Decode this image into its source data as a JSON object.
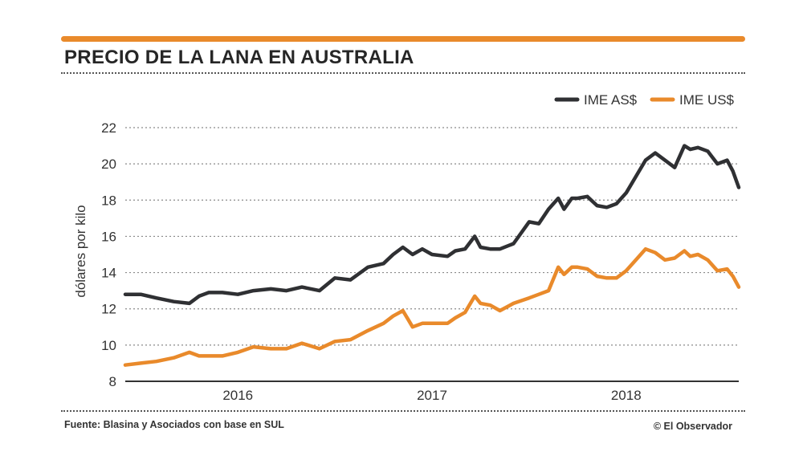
{
  "header": {
    "title": "PRECIO DE LA LANA EN AUSTRALIA"
  },
  "footer": {
    "source": "Fuente: Blasina y Asociados con base en SUL",
    "credit": "© El Observador"
  },
  "colors": {
    "accent": "#e98a2b",
    "series_as": "#2f3033",
    "series_us": "#e98a2b",
    "grid": "#8a8a8a"
  },
  "chart_data": {
    "type": "line",
    "title": "PRECIO DE LA LANA EN AUSTRALIA",
    "xlabel": "",
    "ylabel": "dólares por kilo",
    "xlim": [
      2015.42,
      2018.58
    ],
    "ylim": [
      8,
      22
    ],
    "y_ticks": [
      8,
      10,
      12,
      14,
      16,
      18,
      20,
      22
    ],
    "x_tick_labels": [
      {
        "label": "2016",
        "x": 2016.0
      },
      {
        "label": "2017",
        "x": 2017.0
      },
      {
        "label": "2018",
        "x": 2018.0
      }
    ],
    "legend": "top-right",
    "grid": true,
    "series": [
      {
        "name": "IME AS$",
        "x": [
          2015.42,
          2015.5,
          2015.58,
          2015.67,
          2015.75,
          2015.8,
          2015.85,
          2015.92,
          2016.0,
          2016.08,
          2016.17,
          2016.25,
          2016.33,
          2016.42,
          2016.5,
          2016.58,
          2016.67,
          2016.75,
          2016.8,
          2016.85,
          2016.9,
          2016.95,
          2017.0,
          2017.08,
          2017.12,
          2017.17,
          2017.22,
          2017.25,
          2017.3,
          2017.35,
          2017.42,
          2017.5,
          2017.55,
          2017.6,
          2017.65,
          2017.68,
          2017.72,
          2017.75,
          2017.8,
          2017.85,
          2017.9,
          2017.95,
          2018.0,
          2018.05,
          2018.1,
          2018.15,
          2018.2,
          2018.25,
          2018.3,
          2018.33,
          2018.37,
          2018.42,
          2018.47,
          2018.52,
          2018.55,
          2018.58
        ],
        "values": [
          12.8,
          12.8,
          12.6,
          12.4,
          12.3,
          12.7,
          12.9,
          12.9,
          12.8,
          13.0,
          13.1,
          13.0,
          13.2,
          13.0,
          13.7,
          13.6,
          14.3,
          14.5,
          15.0,
          15.4,
          15.0,
          15.3,
          15.0,
          14.9,
          15.2,
          15.3,
          16.0,
          15.4,
          15.3,
          15.3,
          15.6,
          16.8,
          16.7,
          17.5,
          18.1,
          17.5,
          18.1,
          18.1,
          18.2,
          17.7,
          17.6,
          17.8,
          18.4,
          19.3,
          20.2,
          20.6,
          20.2,
          19.8,
          21.0,
          20.8,
          20.9,
          20.7,
          20.0,
          20.2,
          19.6,
          18.7
        ]
      },
      {
        "name": "IME US$",
        "x": [
          2015.42,
          2015.5,
          2015.58,
          2015.67,
          2015.75,
          2015.8,
          2015.85,
          2015.92,
          2016.0,
          2016.08,
          2016.17,
          2016.25,
          2016.33,
          2016.42,
          2016.5,
          2016.58,
          2016.67,
          2016.75,
          2016.8,
          2016.85,
          2016.9,
          2016.95,
          2017.0,
          2017.08,
          2017.12,
          2017.17,
          2017.22,
          2017.25,
          2017.3,
          2017.35,
          2017.42,
          2017.5,
          2017.55,
          2017.6,
          2017.65,
          2017.68,
          2017.72,
          2017.75,
          2017.8,
          2017.85,
          2017.9,
          2017.95,
          2018.0,
          2018.05,
          2018.1,
          2018.15,
          2018.2,
          2018.25,
          2018.3,
          2018.33,
          2018.37,
          2018.42,
          2018.47,
          2018.52,
          2018.55,
          2018.58
        ],
        "values": [
          8.9,
          9.0,
          9.1,
          9.3,
          9.6,
          9.4,
          9.4,
          9.4,
          9.6,
          9.9,
          9.8,
          9.8,
          10.1,
          9.8,
          10.2,
          10.3,
          10.8,
          11.2,
          11.6,
          11.9,
          11.0,
          11.2,
          11.2,
          11.2,
          11.5,
          11.8,
          12.7,
          12.3,
          12.2,
          11.9,
          12.3,
          12.6,
          12.8,
          13.0,
          14.3,
          13.9,
          14.3,
          14.3,
          14.2,
          13.8,
          13.7,
          13.7,
          14.1,
          14.7,
          15.3,
          15.1,
          14.7,
          14.8,
          15.2,
          14.9,
          15.0,
          14.7,
          14.1,
          14.2,
          13.8,
          13.2
        ]
      }
    ]
  }
}
